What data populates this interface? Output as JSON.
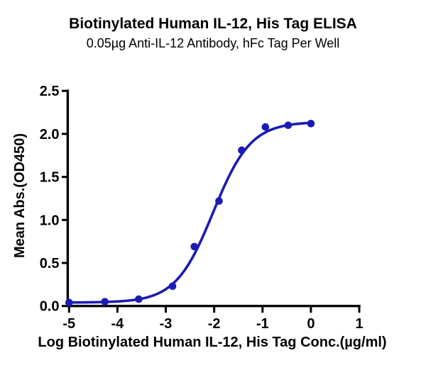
{
  "chart_data": {
    "type": "scatter",
    "title": "Biotinylated Human IL-12, His Tag ELISA",
    "subtitle": "0.05µg Anti-IL-12 Antibody, hFc Tag Per Well",
    "xlabel": "Log Biotinylated Human IL-12, His Tag Conc.(µg/ml)",
    "ylabel": "Mean Abs.(OD450)",
    "xlim": [
      -5,
      1
    ],
    "ylim": [
      0,
      2.5
    ],
    "x_ticks": [
      -5,
      -4,
      -3,
      -2,
      -1,
      0,
      1
    ],
    "x_tick_labels": [
      "-5",
      "-4",
      "-3",
      "-2",
      "-1",
      "0",
      "1"
    ],
    "y_ticks": [
      0,
      0.5,
      1,
      1.5,
      2,
      2.5
    ],
    "y_tick_labels": [
      "0.0",
      "0.5",
      "1.0",
      "1.5",
      "2.0",
      "2.5"
    ],
    "grid": false,
    "legend": "none",
    "axis_color": "#000000",
    "series": [
      {
        "name": "Biotinylated Human IL-12, His Tag",
        "marker": "circle",
        "marker_color": "#1b1bb3",
        "line_color": "#1b1bb3",
        "points": [
          {
            "x": -5.0,
            "y": 0.04
          },
          {
            "x": -4.26,
            "y": 0.05
          },
          {
            "x": -3.56,
            "y": 0.08
          },
          {
            "x": -2.86,
            "y": 0.23
          },
          {
            "x": -2.41,
            "y": 0.69
          },
          {
            "x": -1.9,
            "y": 1.22
          },
          {
            "x": -1.43,
            "y": 1.81
          },
          {
            "x": -0.94,
            "y": 2.08
          },
          {
            "x": -0.47,
            "y": 2.1
          },
          {
            "x": 0.0,
            "y": 2.12
          }
        ],
        "fit_curve": {
          "model": "4PL",
          "bottom": 0.04,
          "top": 2.14,
          "log_ec50": -2.02,
          "hill": 1.12,
          "x_start": -5,
          "x_end": 0
        }
      }
    ]
  }
}
